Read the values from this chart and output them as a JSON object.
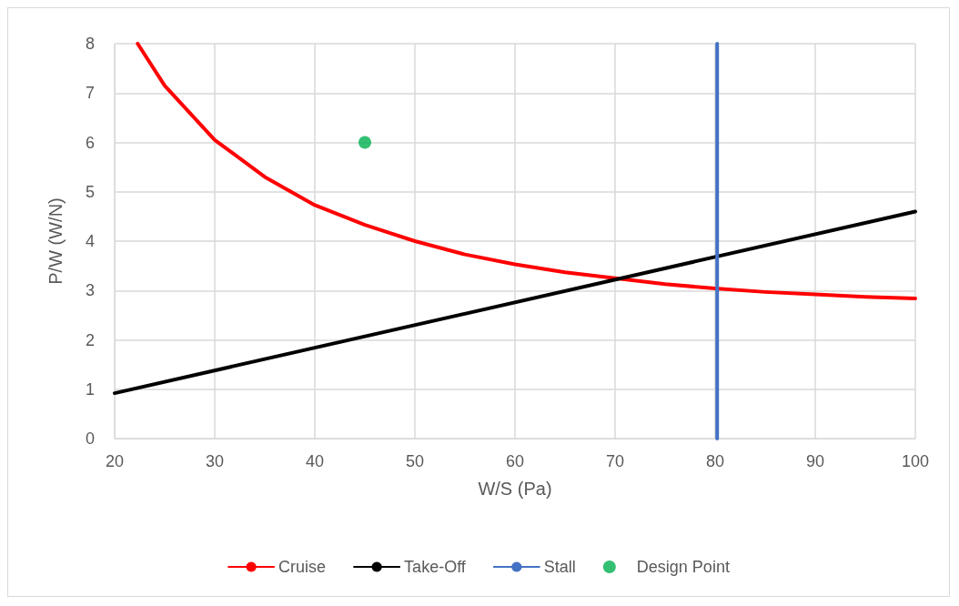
{
  "chart_data": {
    "type": "line",
    "xlabel": "W/S (Pa)",
    "ylabel": "P/W (W/N)",
    "xlim": [
      20,
      100
    ],
    "xticks": [
      20,
      30,
      40,
      50,
      60,
      70,
      80,
      90,
      100
    ],
    "ylim": [
      0,
      8
    ],
    "yticks": [
      0,
      1,
      2,
      3,
      4,
      5,
      6,
      7,
      8
    ],
    "grid": true,
    "legend": "bottom",
    "line_style": "solid",
    "series": [
      {
        "name": "Cruise",
        "color": "#ff0000",
        "marker": "none",
        "x": [
          22.3,
          25,
          30,
          35,
          40,
          45,
          50,
          55,
          60,
          65,
          70,
          75,
          80,
          85,
          90,
          95,
          100
        ],
        "values": [
          8,
          7.15,
          6.05,
          5.3,
          4.73,
          4.33,
          4.0,
          3.73,
          3.53,
          3.37,
          3.25,
          3.13,
          3.04,
          2.97,
          2.92,
          2.87,
          2.84
        ]
      },
      {
        "name": "Take-Off",
        "color": "#000000",
        "marker": "none",
        "x": [
          20,
          100
        ],
        "values": [
          0.92,
          4.6
        ]
      },
      {
        "name": "Stall",
        "color": "#4472c4",
        "marker": "none",
        "x": [
          80.2,
          80.2
        ],
        "values": [
          0,
          8
        ]
      },
      {
        "name": "Design Point",
        "type": "scatter",
        "color": "#00b050",
        "marker": "circle",
        "x": [
          45
        ],
        "values": [
          6
        ]
      }
    ]
  }
}
